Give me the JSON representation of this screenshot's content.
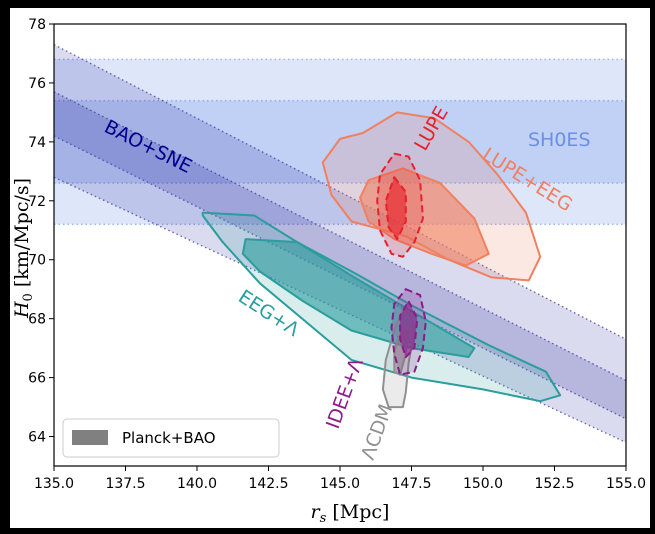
{
  "chart_data": {
    "type": "contour",
    "xlabel": "r_s  [Mpc]",
    "ylabel": "H_0 [km/Mpc/s]",
    "xlim": [
      135.0,
      155.0
    ],
    "ylim": [
      63.0,
      78.0
    ],
    "x_ticks": [
      "135.0",
      "137.5",
      "140.0",
      "142.5",
      "145.0",
      "147.5",
      "150.0",
      "152.5",
      "155.0"
    ],
    "y_ticks": [
      "64",
      "66",
      "68",
      "70",
      "72",
      "74",
      "76",
      "78"
    ],
    "grid": false,
    "legend": {
      "placement": "bottom-left",
      "entries": [
        {
          "label": "Planck+BAO",
          "color": "#808080"
        }
      ]
    },
    "sh0es": {
      "label": "SH0ES",
      "color": "#6b8fe6",
      "inner": [
        72.6,
        75.4
      ],
      "outer": [
        71.2,
        76.8
      ]
    },
    "bao_sne": {
      "label": "BAO+SNE",
      "color": "#00008b",
      "outer_top": [
        [
          135.0,
          77.3
        ],
        [
          155.0,
          67.3
        ]
      ],
      "inner_top": [
        [
          135.0,
          75.7
        ],
        [
          155.0,
          65.9
        ]
      ],
      "inner_bottom": [
        [
          135.0,
          74.2
        ],
        [
          155.0,
          64.6
        ]
      ],
      "outer_bottom": [
        [
          135.0,
          72.8
        ],
        [
          155.0,
          63.8
        ]
      ]
    },
    "series": [
      {
        "name": "EEG+Λ",
        "color": "#2a9d9d",
        "style": "solid",
        "contour_95": [
          [
            140.2,
            71.6
          ],
          [
            142.0,
            71.5
          ],
          [
            143.5,
            70.6
          ],
          [
            145.6,
            69.5
          ],
          [
            147.6,
            68.4
          ],
          [
            150.2,
            67.1
          ],
          [
            152.2,
            66.2
          ],
          [
            152.7,
            65.4
          ],
          [
            152.0,
            65.2
          ],
          [
            150.0,
            65.6
          ],
          [
            147.5,
            66.0
          ],
          [
            145.4,
            66.6
          ],
          [
            143.8,
            67.9
          ],
          [
            142.2,
            69.2
          ],
          [
            140.9,
            70.6
          ],
          [
            140.2,
            71.5
          ]
        ],
        "contour_68": [
          [
            141.7,
            70.7
          ],
          [
            143.5,
            70.6
          ],
          [
            145.5,
            69.4
          ],
          [
            147.6,
            68.2
          ],
          [
            149.7,
            67.0
          ],
          [
            149.5,
            66.7
          ],
          [
            147.5,
            67.0
          ],
          [
            145.4,
            67.6
          ],
          [
            143.7,
            68.6
          ],
          [
            142.2,
            69.6
          ],
          [
            141.6,
            70.2
          ]
        ]
      },
      {
        "name": "LUPE+EEG",
        "color": "#f08060",
        "style": "solid",
        "contour_95": [
          [
            145.8,
            74.3
          ],
          [
            147.0,
            75.0
          ],
          [
            148.3,
            74.8
          ],
          [
            149.5,
            74.0
          ],
          [
            150.5,
            72.9
          ],
          [
            151.5,
            71.6
          ],
          [
            152.0,
            70.1
          ],
          [
            151.6,
            69.3
          ],
          [
            150.3,
            69.4
          ],
          [
            148.8,
            70.0
          ],
          [
            147.3,
            70.8
          ],
          [
            145.4,
            71.3
          ],
          [
            144.7,
            72.2
          ],
          [
            144.4,
            73.3
          ],
          [
            145.0,
            74.1
          ]
        ],
        "contour_68": [
          [
            146.0,
            72.7
          ],
          [
            147.2,
            73.1
          ],
          [
            148.5,
            72.6
          ],
          [
            149.7,
            71.4
          ],
          [
            150.2,
            70.2
          ],
          [
            149.4,
            69.8
          ],
          [
            148.2,
            70.2
          ],
          [
            146.9,
            70.7
          ],
          [
            146.0,
            71.3
          ],
          [
            145.7,
            72.1
          ]
        ]
      },
      {
        "name": "LUPE",
        "color": "#e8202a",
        "style": "dashed",
        "contour_95": [
          [
            146.9,
            73.6
          ],
          [
            147.4,
            73.5
          ],
          [
            147.8,
            72.7
          ],
          [
            147.9,
            71.4
          ],
          [
            147.6,
            70.6
          ],
          [
            147.2,
            70.1
          ],
          [
            146.8,
            70.2
          ],
          [
            146.4,
            71.0
          ],
          [
            146.3,
            72.0
          ],
          [
            146.4,
            72.9
          ]
        ],
        "contour_68": [
          [
            146.9,
            72.8
          ],
          [
            147.3,
            72.3
          ],
          [
            147.3,
            71.3
          ],
          [
            147.0,
            70.7
          ],
          [
            146.7,
            71.1
          ],
          [
            146.6,
            72.0
          ]
        ]
      },
      {
        "name": "IDEE+Λ",
        "color": "#8b1a8b",
        "style": "dashed",
        "contour_95": [
          [
            147.3,
            69.0
          ],
          [
            147.8,
            68.8
          ],
          [
            148.0,
            67.9
          ],
          [
            147.9,
            67.0
          ],
          [
            147.6,
            66.2
          ],
          [
            147.1,
            66.1
          ],
          [
            146.9,
            66.8
          ],
          [
            146.8,
            67.7
          ],
          [
            146.9,
            68.5
          ]
        ],
        "contour_68": [
          [
            147.4,
            68.6
          ],
          [
            147.7,
            68.0
          ],
          [
            147.6,
            67.0
          ],
          [
            147.3,
            66.7
          ],
          [
            147.1,
            67.3
          ],
          [
            147.1,
            68.1
          ]
        ]
      },
      {
        "name": "ΛCDM",
        "color": "#909090",
        "style": "solid",
        "contour_95": [
          [
            147.4,
            68.3
          ],
          [
            147.6,
            67.6
          ],
          [
            147.4,
            66.5
          ],
          [
            147.3,
            65.5
          ],
          [
            147.2,
            65.0
          ],
          [
            146.7,
            65.0
          ],
          [
            146.5,
            65.6
          ],
          [
            146.6,
            66.6
          ],
          [
            146.9,
            67.6
          ],
          [
            147.2,
            68.3
          ]
        ],
        "contour_68": [
          [
            147.4,
            67.6
          ],
          [
            147.3,
            66.8
          ],
          [
            147.1,
            66.1
          ],
          [
            146.9,
            66.2
          ],
          [
            146.9,
            66.9
          ],
          [
            147.1,
            67.5
          ]
        ]
      }
    ]
  }
}
